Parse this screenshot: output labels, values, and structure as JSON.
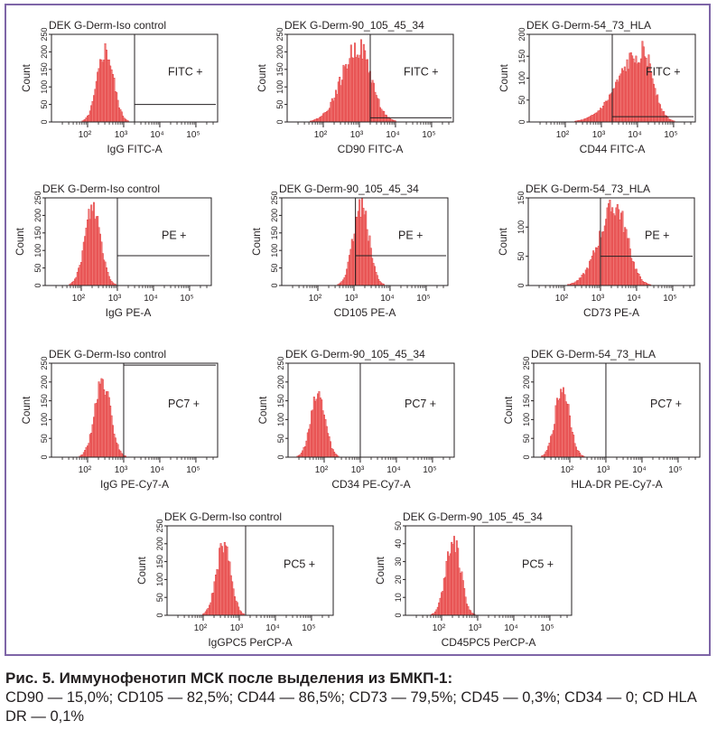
{
  "colors": {
    "histogram_fill": "#f07472",
    "histogram_stroke": "#d9171c",
    "frame_border": "#7e65a7"
  },
  "caption": {
    "title": "Рис. 5. Иммунофенотип МСК после выделения из БМКП-1:",
    "body": "CD90 — 15,0%; CD105 — 82,5%; CD44 — 86,5%; CD73 — 79,5%; CD45 — 0,3%; CD34 — 0; CD HLA DR — 0,1%"
  },
  "chart_data": [
    {
      "type": "histogram",
      "title": "DEK G-Derm-Iso control",
      "xlabel": "IgG FITC-A",
      "ylabel": "Count",
      "xscale": "log",
      "xlim": [
        10,
        400000
      ],
      "ylim": [
        0,
        250
      ],
      "xticks": [
        "10²",
        "10³",
        "10⁴",
        "10⁵"
      ],
      "yticks": [
        "0",
        "50",
        "100",
        "150",
        "200",
        "250"
      ],
      "gate": {
        "label": "FITC +",
        "from": 2000,
        "line_level": 50
      },
      "peak": {
        "center": 300,
        "height": 210,
        "width": 0.22,
        "shoulder": 0
      }
    },
    {
      "type": "histogram",
      "title": "DEK G-Derm-90_105_45_34",
      "xlabel": "CD90 FITC-A",
      "ylabel": "Count",
      "xscale": "log",
      "xlim": [
        10,
        400000
      ],
      "ylim": [
        0,
        250
      ],
      "xticks": [
        "10²",
        "10³",
        "10⁴",
        "10⁵"
      ],
      "yticks": [
        "0",
        "50",
        "100",
        "150",
        "200",
        "250"
      ],
      "gate": {
        "label": "FITC +",
        "from": 2000,
        "line_level": 12
      },
      "peak": {
        "center": 900,
        "height": 220,
        "width": 0.35,
        "shoulder": 0.15
      }
    },
    {
      "type": "histogram",
      "title": "DEK G-Derm-54_73_HLA",
      "xlabel": "CD44 FITC-A",
      "ylabel": "Count",
      "xscale": "log",
      "xlim": [
        10,
        400000
      ],
      "ylim": [
        0,
        200
      ],
      "xticks": [
        "10²",
        "10³",
        "10⁴",
        "10⁵"
      ],
      "yticks": [
        "0",
        "50",
        "100",
        "150",
        "200"
      ],
      "gate": {
        "label": "FITC +",
        "from": 2000,
        "line_level": 12
      },
      "peak": {
        "center": 13000,
        "height": 165,
        "width": 0.3,
        "shoulder": 0.55
      }
    },
    {
      "type": "histogram",
      "title": "DEK G-Derm-Iso control",
      "xlabel": "IgG PE-A",
      "ylabel": "Count",
      "xscale": "log",
      "xlim": [
        10,
        400000
      ],
      "ylim": [
        0,
        250
      ],
      "xticks": [
        "10²",
        "10³",
        "10⁴",
        "10⁵"
      ],
      "yticks": [
        "0",
        "50",
        "100",
        "150",
        "200",
        "250"
      ],
      "gate": {
        "label": "PE +",
        "from": 1000,
        "line_level": 85
      },
      "peak": {
        "center": 200,
        "height": 230,
        "width": 0.22,
        "shoulder": 0
      }
    },
    {
      "type": "histogram",
      "title": "DEK G-Derm-90_105_45_34",
      "xlabel": "CD105 PE-A",
      "ylabel": "Count",
      "xscale": "log",
      "xlim": [
        10,
        400000
      ],
      "ylim": [
        0,
        250
      ],
      "xticks": [
        "10²",
        "10³",
        "10⁴",
        "10⁵"
      ],
      "yticks": [
        "0",
        "50",
        "100",
        "150",
        "200",
        "250"
      ],
      "gate": {
        "label": "PE +",
        "from": 1100,
        "line_level": 85
      },
      "peak": {
        "center": 1500,
        "height": 235,
        "width": 0.22,
        "shoulder": 0
      }
    },
    {
      "type": "histogram",
      "title": "DEK G-Derm-54_73_HLA",
      "xlabel": "CD73 PE-A",
      "ylabel": "Count",
      "xscale": "log",
      "xlim": [
        10,
        400000
      ],
      "ylim": [
        0,
        150
      ],
      "xticks": [
        "10²",
        "10³",
        "10⁴",
        "10⁵"
      ],
      "yticks": [
        "0",
        "50",
        "100",
        "150"
      ],
      "gate": {
        "label": "PE +",
        "from": 1000,
        "line_level": 50
      },
      "peak": {
        "center": 2500,
        "height": 140,
        "width": 0.32,
        "shoulder": 0.2
      }
    },
    {
      "type": "histogram",
      "title": "DEK G-Derm-Iso control",
      "xlabel": "IgG PE-Cy7-A",
      "ylabel": "Count",
      "xscale": "log",
      "xlim": [
        10,
        400000
      ],
      "ylim": [
        0,
        250
      ],
      "xticks": [
        "10²",
        "10³",
        "10⁴",
        "10⁵"
      ],
      "yticks": [
        "0",
        "50",
        "100",
        "150",
        "200",
        "250"
      ],
      "gate": {
        "label": "PC7 +",
        "from": 1000,
        "line_level": 245
      },
      "peak": {
        "center": 250,
        "height": 200,
        "width": 0.22,
        "shoulder": 0
      }
    },
    {
      "type": "histogram",
      "title": "DEK G-Derm-90_105_45_34",
      "xlabel": "CD34 PE-Cy7-A",
      "ylabel": "Count",
      "xscale": "log",
      "xlim": [
        10,
        400000
      ],
      "ylim": [
        0,
        250
      ],
      "xticks": [
        "10²",
        "10³",
        "10⁴",
        "10⁵"
      ],
      "yticks": [
        "0",
        "50",
        "100",
        "150",
        "200",
        "250"
      ],
      "gate": {
        "label": "PC7 +",
        "from": 1000,
        "line_level": 0
      },
      "peak": {
        "center": 65,
        "height": 170,
        "width": 0.2,
        "shoulder": 0
      }
    },
    {
      "type": "histogram",
      "title": "DEK G-Derm-54_73_HLA",
      "xlabel": "HLA-DR PE-Cy7-A",
      "ylabel": "Count",
      "xscale": "log",
      "xlim": [
        10,
        400000
      ],
      "ylim": [
        0,
        250
      ],
      "xticks": [
        "10²",
        "10³",
        "10⁴",
        "10⁵"
      ],
      "yticks": [
        "0",
        "50",
        "100",
        "150",
        "200",
        "250"
      ],
      "gate": {
        "label": "PC7 +",
        "from": 1000,
        "line_level": 0
      },
      "peak": {
        "center": 60,
        "height": 190,
        "width": 0.2,
        "shoulder": 0
      }
    },
    {
      "type": "histogram",
      "title": "DEK G-Derm-Iso control",
      "xlabel": "IgGPC5 PerCP-A",
      "ylabel": "Count",
      "xscale": "log",
      "xlim": [
        10,
        400000
      ],
      "ylim": [
        0,
        250
      ],
      "xticks": [
        "10²",
        "10³",
        "10⁴",
        "10⁵"
      ],
      "yticks": [
        "0",
        "50",
        "100",
        "150",
        "200",
        "250"
      ],
      "gate": {
        "label": "PC5 +",
        "from": 1500,
        "line_level": 0
      },
      "peak": {
        "center": 350,
        "height": 200,
        "width": 0.2,
        "shoulder": 0
      }
    },
    {
      "type": "histogram",
      "title": "DEK G-Derm-90_105_45_34",
      "xlabel": "CD45PC5 PerCP-A",
      "ylabel": "Count",
      "xscale": "log",
      "xlim": [
        10,
        400000
      ],
      "ylim": [
        0,
        50
      ],
      "xticks": [
        "10²",
        "10³",
        "10⁴",
        "10⁵"
      ],
      "yticks": [
        "0",
        "10",
        "20",
        "30",
        "40",
        "50"
      ],
      "gate": {
        "label": "PC5 +",
        "from": 800,
        "line_level": 0
      },
      "peak": {
        "center": 200,
        "height": 45,
        "width": 0.2,
        "shoulder": 0
      }
    }
  ]
}
